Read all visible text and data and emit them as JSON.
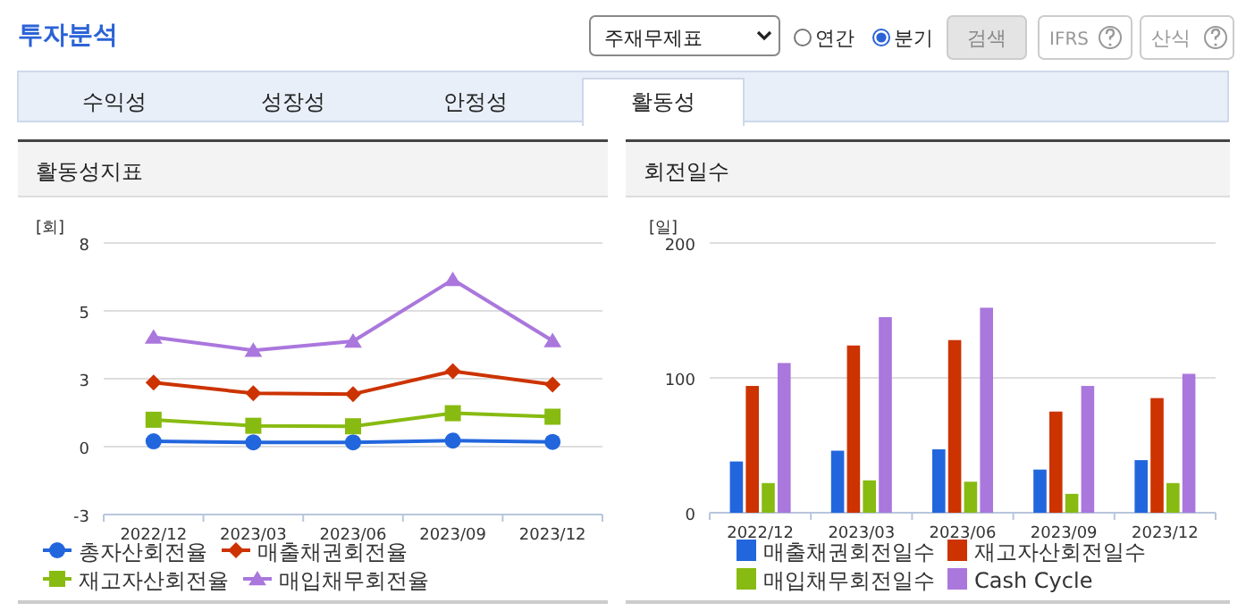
{
  "chart_data": [
    {
      "type": "other",
      "title": "투자분석",
      "annotations": [
        "주재무제표",
        "연간",
        "분기",
        "검색",
        "IFRS",
        "산식",
        "수익성",
        "성장성",
        "안정성",
        "활동성"
      ]
    },
    {
      "type": "line",
      "title": "활동성지표",
      "ylabel": "[회]",
      "categories": [
        "2022/12",
        "2023/03",
        "2023/06",
        "2023/09",
        "2023/12"
      ],
      "ylim": [
        -2.7,
        8.1
      ],
      "yticks": [
        {
          "value": -2.7,
          "label": "-3"
        },
        0,
        {
          "value": 2.7,
          "label": "3"
        },
        {
          "value": 5.4,
          "label": "5"
        },
        {
          "value": 8.1,
          "label": "8"
        }
      ],
      "grid": "y",
      "legend": "bottom",
      "series": [
        {
          "name": "총자산회전율",
          "color": "#2266dd",
          "marker": "circle",
          "values": [
            0.21,
            0.17,
            0.17,
            0.24,
            0.19
          ]
        },
        {
          "name": "매출채권회전율",
          "color": "#cc3300",
          "marker": "diamond",
          "values": [
            2.55,
            2.12,
            2.09,
            3.0,
            2.47
          ]
        },
        {
          "name": "재고자산회전율",
          "color": "#88bb11",
          "marker": "square",
          "values": [
            1.07,
            0.83,
            0.81,
            1.33,
            1.19
          ]
        },
        {
          "name": "매입채무회전율",
          "color": "#aa77dd",
          "marker": "triangle",
          "values": [
            4.35,
            3.83,
            4.19,
            6.64,
            4.21
          ]
        }
      ]
    },
    {
      "type": "bar",
      "title": "회전일수",
      "ylabel": "[일]",
      "categories": [
        "2022/12",
        "2023/03",
        "2023/06",
        "2023/09",
        "2023/12"
      ],
      "ylim": [
        0,
        200
      ],
      "yticks": [
        0,
        100,
        200
      ],
      "grid": "y",
      "legend": "bottom",
      "series": [
        {
          "name": "매출채권회전일수",
          "color": "#2266dd",
          "values": [
            38,
            46,
            47,
            32,
            39
          ]
        },
        {
          "name": "재고자산회전일수",
          "color": "#cc3300",
          "values": [
            94,
            124,
            128,
            75,
            85
          ]
        },
        {
          "name": "매입채무회전일수",
          "color": "#88bb11",
          "values": [
            22,
            24,
            23,
            14,
            22
          ]
        },
        {
          "name": "Cash Cycle",
          "color": "#aa77dd",
          "values": [
            111,
            145,
            152,
            94,
            103
          ]
        }
      ]
    }
  ]
}
